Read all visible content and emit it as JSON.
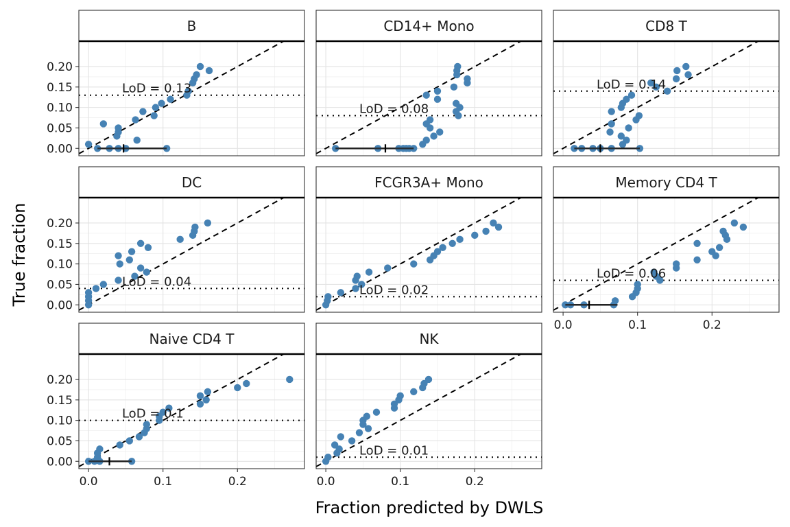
{
  "chart_data": {
    "type": "scatter",
    "layout": "facet_wrap",
    "ncol": 3,
    "xlabel": "Fraction predicted by DWLS",
    "ylabel": "True fraction",
    "xlim": [
      -0.013,
      0.29
    ],
    "ylim": [
      -0.018,
      0.262
    ],
    "x_ticks": [
      0.0,
      0.1,
      0.2
    ],
    "x_tick_labels": [
      "0.0",
      "0.1",
      "0.2"
    ],
    "y_ticks": [
      0.0,
      0.05,
      0.1,
      0.15,
      0.2
    ],
    "y_tick_labels": [
      "0.00",
      "0.05",
      "0.10",
      "0.15",
      "0.20"
    ],
    "grid": true,
    "reference_line": "y = x",
    "point_color": "#4682b4",
    "panels": [
      {
        "title": "B",
        "lod": 0.13,
        "lod_label": "LoD = 0.13",
        "zero_range": [
          0.012,
          0.105
        ],
        "zero_mark": 0.047,
        "points": [
          [
            0.0,
            0.01
          ],
          [
            0.02,
            0.06
          ],
          [
            0.038,
            0.03
          ],
          [
            0.04,
            0.04
          ],
          [
            0.04,
            0.05
          ],
          [
            0.065,
            0.02
          ],
          [
            0.063,
            0.07
          ],
          [
            0.073,
            0.09
          ],
          [
            0.088,
            0.08
          ],
          [
            0.09,
            0.1
          ],
          [
            0.098,
            0.11
          ],
          [
            0.11,
            0.12
          ],
          [
            0.132,
            0.13
          ],
          [
            0.134,
            0.14
          ],
          [
            0.14,
            0.16
          ],
          [
            0.142,
            0.17
          ],
          [
            0.145,
            0.18
          ],
          [
            0.15,
            0.2
          ],
          [
            0.162,
            0.19
          ],
          [
            0.012,
            0.0
          ],
          [
            0.028,
            0.0
          ],
          [
            0.04,
            0.0
          ],
          [
            0.05,
            0.0
          ],
          [
            0.105,
            0.0
          ]
        ]
      },
      {
        "title": "CD14+ Mono",
        "lod": 0.08,
        "lod_label": "LoD = 0.08",
        "zero_range": [
          0.013,
          0.118
        ],
        "zero_mark": 0.08,
        "points": [
          [
            0.013,
            0.0
          ],
          [
            0.07,
            0.0
          ],
          [
            0.098,
            0.0
          ],
          [
            0.104,
            0.0
          ],
          [
            0.108,
            0.0
          ],
          [
            0.112,
            0.0
          ],
          [
            0.118,
            0.0
          ],
          [
            0.13,
            0.01
          ],
          [
            0.135,
            0.02
          ],
          [
            0.135,
            0.06
          ],
          [
            0.14,
            0.07
          ],
          [
            0.14,
            0.05
          ],
          [
            0.145,
            0.03
          ],
          [
            0.153,
            0.04
          ],
          [
            0.135,
            0.13
          ],
          [
            0.15,
            0.14
          ],
          [
            0.15,
            0.12
          ],
          [
            0.172,
            0.15
          ],
          [
            0.175,
            0.11
          ],
          [
            0.175,
            0.09
          ],
          [
            0.178,
            0.08
          ],
          [
            0.18,
            0.1
          ],
          [
            0.176,
            0.18
          ],
          [
            0.176,
            0.19
          ],
          [
            0.177,
            0.2
          ],
          [
            0.19,
            0.17
          ],
          [
            0.19,
            0.16
          ]
        ]
      },
      {
        "title": "CD8 T",
        "lod": 0.14,
        "lod_label": "LoD = 0.14",
        "zero_range": [
          0.015,
          0.103
        ],
        "zero_mark": 0.05,
        "points": [
          [
            0.015,
            0.0
          ],
          [
            0.025,
            0.0
          ],
          [
            0.04,
            0.0
          ],
          [
            0.05,
            0.0
          ],
          [
            0.065,
            0.0
          ],
          [
            0.103,
            0.0
          ],
          [
            0.085,
            0.02
          ],
          [
            0.08,
            0.01
          ],
          [
            0.078,
            0.03
          ],
          [
            0.088,
            0.05
          ],
          [
            0.098,
            0.07
          ],
          [
            0.102,
            0.08
          ],
          [
            0.063,
            0.04
          ],
          [
            0.065,
            0.06
          ],
          [
            0.065,
            0.09
          ],
          [
            0.078,
            0.1
          ],
          [
            0.08,
            0.11
          ],
          [
            0.085,
            0.12
          ],
          [
            0.092,
            0.13
          ],
          [
            0.118,
            0.16
          ],
          [
            0.125,
            0.15
          ],
          [
            0.14,
            0.14
          ],
          [
            0.152,
            0.17
          ],
          [
            0.153,
            0.19
          ],
          [
            0.165,
            0.2
          ],
          [
            0.168,
            0.18
          ]
        ]
      },
      {
        "title": "DC",
        "lod": 0.04,
        "lod_label": "LoD = 0.04",
        "zero_range": null,
        "zero_mark": null,
        "points": [
          [
            0.0,
            0.0
          ],
          [
            0.0,
            0.01
          ],
          [
            0.0,
            0.02
          ],
          [
            0.0,
            0.03
          ],
          [
            0.01,
            0.04
          ],
          [
            0.02,
            0.05
          ],
          [
            0.04,
            0.06
          ],
          [
            0.062,
            0.07
          ],
          [
            0.07,
            0.09
          ],
          [
            0.078,
            0.08
          ],
          [
            0.04,
            0.12
          ],
          [
            0.042,
            0.1
          ],
          [
            0.055,
            0.11
          ],
          [
            0.058,
            0.13
          ],
          [
            0.07,
            0.15
          ],
          [
            0.08,
            0.14
          ],
          [
            0.123,
            0.16
          ],
          [
            0.14,
            0.17
          ],
          [
            0.142,
            0.18
          ],
          [
            0.143,
            0.19
          ],
          [
            0.16,
            0.2
          ]
        ]
      },
      {
        "title": "FCGR3A+ Mono",
        "lod": 0.02,
        "lod_label": "LoD = 0.02",
        "zero_range": null,
        "zero_mark": null,
        "points": [
          [
            0.0,
            0.0
          ],
          [
            0.002,
            0.01
          ],
          [
            0.003,
            0.02
          ],
          [
            0.02,
            0.03
          ],
          [
            0.04,
            0.04
          ],
          [
            0.048,
            0.05
          ],
          [
            0.04,
            0.06
          ],
          [
            0.042,
            0.07
          ],
          [
            0.058,
            0.08
          ],
          [
            0.083,
            0.09
          ],
          [
            0.118,
            0.1
          ],
          [
            0.14,
            0.11
          ],
          [
            0.145,
            0.12
          ],
          [
            0.15,
            0.13
          ],
          [
            0.157,
            0.14
          ],
          [
            0.17,
            0.15
          ],
          [
            0.18,
            0.16
          ],
          [
            0.2,
            0.17
          ],
          [
            0.215,
            0.18
          ],
          [
            0.225,
            0.2
          ],
          [
            0.232,
            0.19
          ]
        ]
      },
      {
        "title": "Memory CD4 T",
        "lod": 0.06,
        "lod_label": "LoD = 0.06",
        "zero_range": [
          0.003,
          0.073
        ],
        "zero_mark": 0.035,
        "points": [
          [
            0.003,
            0.0
          ],
          [
            0.01,
            0.0
          ],
          [
            0.028,
            0.0
          ],
          [
            0.068,
            0.0
          ],
          [
            0.07,
            0.01
          ],
          [
            0.093,
            0.02
          ],
          [
            0.098,
            0.03
          ],
          [
            0.1,
            0.04
          ],
          [
            0.1,
            0.05
          ],
          [
            0.122,
            0.08
          ],
          [
            0.125,
            0.07
          ],
          [
            0.13,
            0.06
          ],
          [
            0.152,
            0.09
          ],
          [
            0.152,
            0.1
          ],
          [
            0.18,
            0.11
          ],
          [
            0.18,
            0.15
          ],
          [
            0.2,
            0.13
          ],
          [
            0.205,
            0.12
          ],
          [
            0.21,
            0.14
          ],
          [
            0.215,
            0.18
          ],
          [
            0.218,
            0.17
          ],
          [
            0.22,
            0.16
          ],
          [
            0.23,
            0.2
          ],
          [
            0.242,
            0.19
          ]
        ]
      },
      {
        "title": "Naive CD4 T",
        "lod": 0.1,
        "lod_label": "LoD = 0.1",
        "zero_range": [
          0.0,
          0.058
        ],
        "zero_mark": 0.028,
        "points": [
          [
            0.0,
            0.0
          ],
          [
            0.008,
            0.0
          ],
          [
            0.015,
            0.0
          ],
          [
            0.058,
            0.0
          ],
          [
            0.012,
            0.01
          ],
          [
            0.012,
            0.02
          ],
          [
            0.015,
            0.03
          ],
          [
            0.042,
            0.04
          ],
          [
            0.055,
            0.05
          ],
          [
            0.068,
            0.06
          ],
          [
            0.075,
            0.07
          ],
          [
            0.078,
            0.08
          ],
          [
            0.078,
            0.09
          ],
          [
            0.095,
            0.1
          ],
          [
            0.095,
            0.11
          ],
          [
            0.1,
            0.12
          ],
          [
            0.108,
            0.13
          ],
          [
            0.15,
            0.14
          ],
          [
            0.15,
            0.16
          ],
          [
            0.158,
            0.15
          ],
          [
            0.16,
            0.17
          ],
          [
            0.2,
            0.18
          ],
          [
            0.212,
            0.19
          ],
          [
            0.27,
            0.2
          ]
        ]
      },
      {
        "title": "NK",
        "lod": 0.01,
        "lod_label": "LoD = 0.01",
        "zero_range": null,
        "zero_mark": null,
        "points": [
          [
            0.0,
            0.0
          ],
          [
            0.003,
            0.01
          ],
          [
            0.015,
            0.02
          ],
          [
            0.018,
            0.03
          ],
          [
            0.012,
            0.04
          ],
          [
            0.035,
            0.05
          ],
          [
            0.02,
            0.06
          ],
          [
            0.045,
            0.07
          ],
          [
            0.057,
            0.08
          ],
          [
            0.05,
            0.09
          ],
          [
            0.05,
            0.1
          ],
          [
            0.055,
            0.11
          ],
          [
            0.068,
            0.12
          ],
          [
            0.092,
            0.13
          ],
          [
            0.092,
            0.14
          ],
          [
            0.098,
            0.15
          ],
          [
            0.1,
            0.16
          ],
          [
            0.118,
            0.17
          ],
          [
            0.13,
            0.18
          ],
          [
            0.132,
            0.19
          ],
          [
            0.138,
            0.2
          ]
        ]
      }
    ]
  }
}
